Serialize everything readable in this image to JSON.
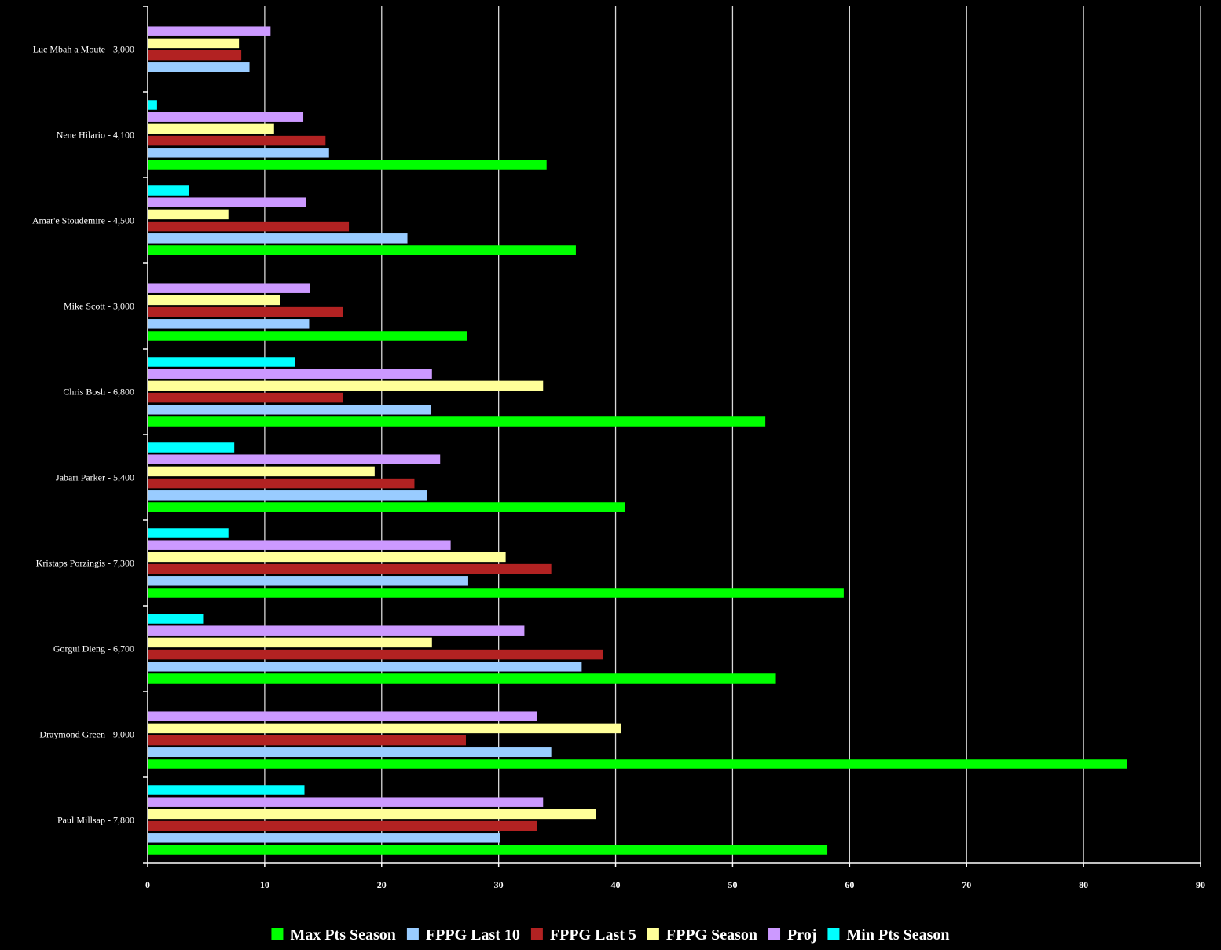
{
  "chart_data": {
    "type": "bar",
    "orientation": "horizontal",
    "title": "",
    "xlabel": "",
    "ylabel": "",
    "xlim": [
      0,
      90
    ],
    "xticks": [
      "0",
      "10",
      "20",
      "30",
      "40",
      "50",
      "60",
      "70",
      "80",
      "90"
    ],
    "grid": true,
    "legend_position": "bottom",
    "categories": [
      "Luc Mbah a Moute - 3,000",
      "Nene Hilario - 4,100",
      "Amar'e Stoudemire - 4,500",
      "Mike Scott - 3,000",
      "Chris Bosh - 6,800",
      "Jabari Parker - 5,400",
      "Kristaps Porzingis - 7,300",
      "Gorgui Dieng - 6,700",
      "Draymond Green - 9,000",
      "Paul Millsap - 7,800"
    ],
    "series": [
      {
        "name": "Max Pts Season",
        "color": "#00ff00",
        "values": [
          0,
          34.1,
          36.6,
          27.3,
          52.8,
          40.8,
          59.5,
          53.7,
          83.7,
          58.1
        ]
      },
      {
        "name": "FPPG Last 10",
        "color": "#99ccff",
        "values": [
          8.7,
          15.5,
          22.2,
          13.8,
          24.2,
          23.9,
          27.4,
          37.1,
          34.5,
          30.1
        ]
      },
      {
        "name": "FPPG Last 5",
        "color": "#b22222",
        "values": [
          8.0,
          15.2,
          17.2,
          16.7,
          16.7,
          22.8,
          34.5,
          38.9,
          27.2,
          33.3
        ]
      },
      {
        "name": "FPPG Season",
        "color": "#ffff99",
        "values": [
          7.8,
          10.8,
          6.9,
          11.3,
          33.8,
          19.4,
          30.6,
          24.3,
          40.5,
          38.3
        ]
      },
      {
        "name": "Proj",
        "color": "#cc99ff",
        "values": [
          10.5,
          13.3,
          13.5,
          13.9,
          24.3,
          25.0,
          25.9,
          32.2,
          33.3,
          33.8
        ]
      },
      {
        "name": "Min Pts Season",
        "color": "#00ffff",
        "values": [
          0,
          0.8,
          3.5,
          0,
          12.6,
          7.4,
          6.9,
          4.8,
          0,
          13.4
        ]
      }
    ]
  }
}
